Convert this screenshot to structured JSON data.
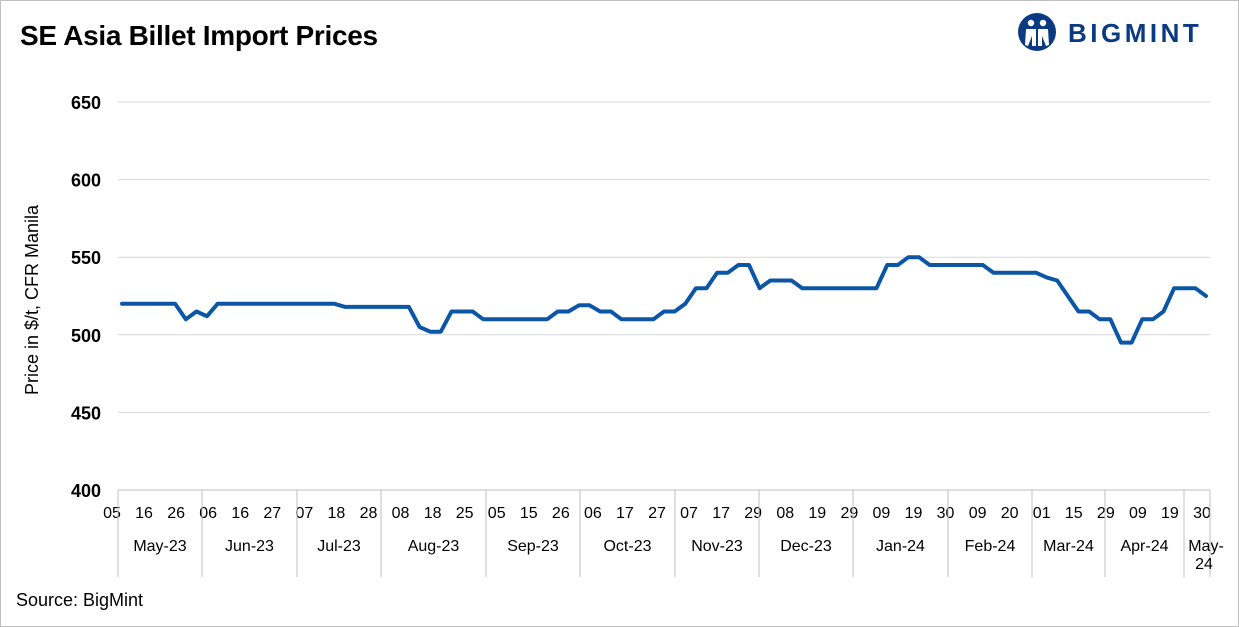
{
  "title": "SE Asia Billet Import Prices",
  "logo": {
    "text": "BIGMINT",
    "color": "#0a3a82"
  },
  "source": "Source: BigMint",
  "line_color": "#0b56a6",
  "chart_data": {
    "type": "line",
    "ylabel": "Price in $/t, CFR Manila",
    "ylim": [
      400,
      650
    ],
    "yticks": [
      400,
      450,
      500,
      550,
      600,
      650
    ],
    "grid": true,
    "x_day_labels": [
      "05",
      "16",
      "26",
      "06",
      "16",
      "27",
      "07",
      "18",
      "28",
      "08",
      "18",
      "25",
      "05",
      "15",
      "26",
      "06",
      "17",
      "27",
      "07",
      "17",
      "29",
      "08",
      "19",
      "29",
      "09",
      "19",
      "30",
      "09",
      "20",
      "01",
      "15",
      "29",
      "09",
      "19",
      "30"
    ],
    "month_labels": [
      "May-23",
      "Jun-23",
      "Jul-23",
      "Aug-23",
      "Sep-23",
      "Oct-23",
      "Nov-23",
      "Dec-23",
      "Jan-24",
      "Feb-24",
      "Mar-24",
      "Apr-24",
      "May-24"
    ],
    "series": [
      {
        "values": [
          520,
          520,
          520,
          520,
          520,
          520,
          510,
          515,
          512,
          520,
          520,
          520,
          520,
          520,
          520,
          520,
          520,
          520,
          520,
          520,
          520,
          518,
          518,
          518,
          518,
          518,
          518,
          518,
          505,
          502,
          502,
          515,
          515,
          515,
          510,
          510,
          510,
          510,
          510,
          510,
          510,
          515,
          515,
          519,
          519,
          515,
          515,
          510,
          510,
          510,
          510,
          515,
          515,
          520,
          530,
          530,
          540,
          540,
          545,
          545,
          530,
          535,
          535,
          535,
          530,
          530,
          530,
          530,
          530,
          530,
          530,
          530,
          545,
          545,
          550,
          550,
          545,
          545,
          545,
          545,
          545,
          545,
          540,
          540,
          540,
          540,
          540,
          537,
          535,
          525,
          515,
          515,
          510,
          510,
          495,
          495,
          510,
          510,
          515,
          530,
          530,
          530,
          525
        ]
      }
    ]
  }
}
